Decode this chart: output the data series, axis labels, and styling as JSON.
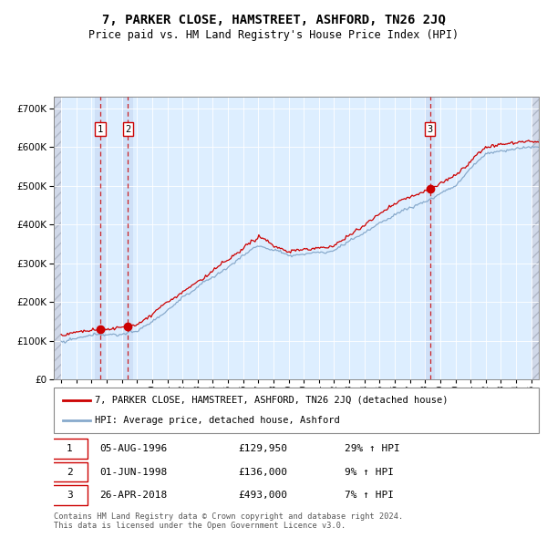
{
  "title": "7, PARKER CLOSE, HAMSTREET, ASHFORD, TN26 2JQ",
  "subtitle": "Price paid vs. HM Land Registry's House Price Index (HPI)",
  "legend_property": "7, PARKER CLOSE, HAMSTREET, ASHFORD, TN26 2JQ (detached house)",
  "legend_hpi": "HPI: Average price, detached house, Ashford",
  "footer": "Contains HM Land Registry data © Crown copyright and database right 2024.\nThis data is licensed under the Open Government Licence v3.0.",
  "transactions": [
    {
      "num": 1,
      "date": "05-AUG-1996",
      "year": 1996.59,
      "price": 129950,
      "pct": "29% ↑ HPI"
    },
    {
      "num": 2,
      "date": "01-JUN-1998",
      "year": 1998.41,
      "price": 136000,
      "pct": "9% ↑ HPI"
    },
    {
      "num": 3,
      "date": "26-APR-2018",
      "year": 2018.32,
      "price": 493000,
      "pct": "7% ↑ HPI"
    }
  ],
  "background_color": "#ffffff",
  "plot_bg_color": "#ddeeff",
  "property_line_color": "#cc0000",
  "hpi_line_color": "#88aacc",
  "dashed_line_color": "#cc0000",
  "marker_color": "#cc0000",
  "highlight_color": "#ccddf5",
  "ylim": [
    0,
    730000
  ],
  "yticks": [
    0,
    100000,
    200000,
    300000,
    400000,
    500000,
    600000,
    700000
  ],
  "xlim_start": 1993.5,
  "xlim_end": 2025.5,
  "xtick_years": [
    1994,
    1995,
    1996,
    1997,
    1998,
    1999,
    2000,
    2001,
    2002,
    2003,
    2004,
    2005,
    2006,
    2007,
    2008,
    2009,
    2010,
    2011,
    2012,
    2013,
    2014,
    2015,
    2016,
    2017,
    2018,
    2019,
    2020,
    2021,
    2022,
    2023,
    2024,
    2025
  ]
}
